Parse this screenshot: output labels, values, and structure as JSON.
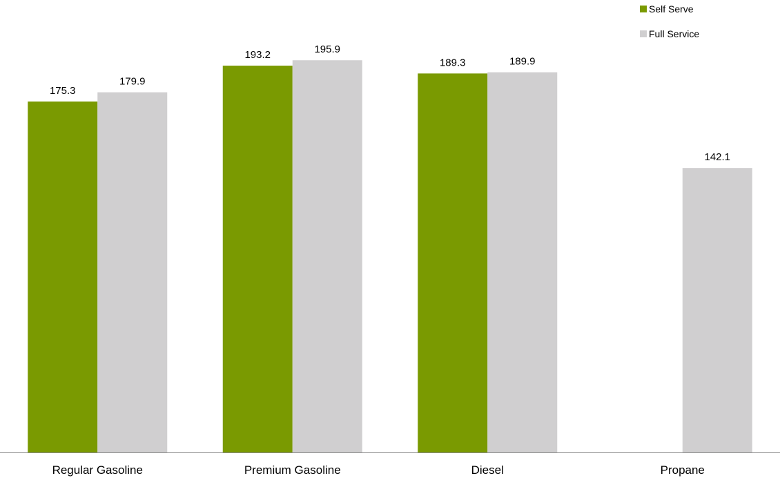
{
  "chart_data": {
    "type": "bar",
    "categories": [
      "Regular Gasoline",
      "Premium Gasoline",
      "Diesel",
      "Propane"
    ],
    "series": [
      {
        "name": "Self Serve",
        "color": "#7a9a01",
        "values": [
          175.3,
          193.2,
          189.3,
          null
        ],
        "labels": [
          "175.3",
          "193.2",
          "189.3",
          ""
        ]
      },
      {
        "name": "Full Service",
        "color": "#d0cfd0",
        "values": [
          179.9,
          195.9,
          189.9,
          142.1
        ],
        "labels": [
          "179.9",
          "195.9",
          "189.9",
          "142.1"
        ]
      }
    ],
    "ylim": [
      0,
      226
    ],
    "grid": false,
    "legend_position": "top-right",
    "axis_color": "#888888"
  }
}
